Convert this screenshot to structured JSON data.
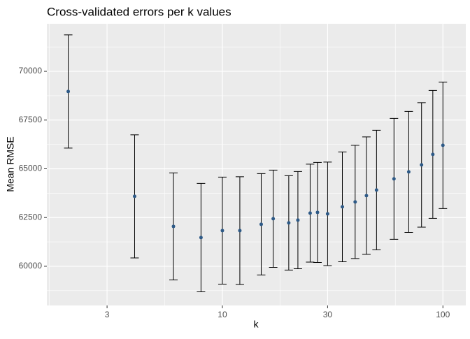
{
  "chart_data": {
    "type": "errorbar",
    "title": "Cross-validated errors per k values",
    "x_label": "k",
    "y_label": "Mean RMSE",
    "x": [
      2,
      4,
      6,
      8,
      10,
      12,
      15,
      17,
      20,
      22,
      25,
      27,
      30,
      35,
      40,
      45,
      50,
      60,
      70,
      80,
      90,
      100
    ],
    "values": [
      68967,
      63587,
      62044,
      61471,
      61829,
      61829,
      62152,
      62439,
      62224,
      62367,
      62726,
      62762,
      62690,
      63049,
      63300,
      63623,
      63910,
      64484,
      64842,
      65201,
      65739,
      66205
    ],
    "errors": [
      2905,
      3157,
      2744,
      2780,
      2744,
      2762,
      2600,
      2493,
      2421,
      2493,
      2511,
      2565,
      2654,
      2816,
      2905,
      3013,
      3067,
      3103,
      3103,
      3193,
      3282,
      3246
    ],
    "color": "#2e5a87",
    "x_log": true,
    "xlim": [
      1.6,
      127
    ],
    "xticks": [
      3,
      10,
      30,
      100
    ],
    "ylim": [
      57990,
      72440
    ],
    "yticks": [
      60000,
      62500,
      65000,
      67500,
      70000
    ],
    "grid": true
  }
}
